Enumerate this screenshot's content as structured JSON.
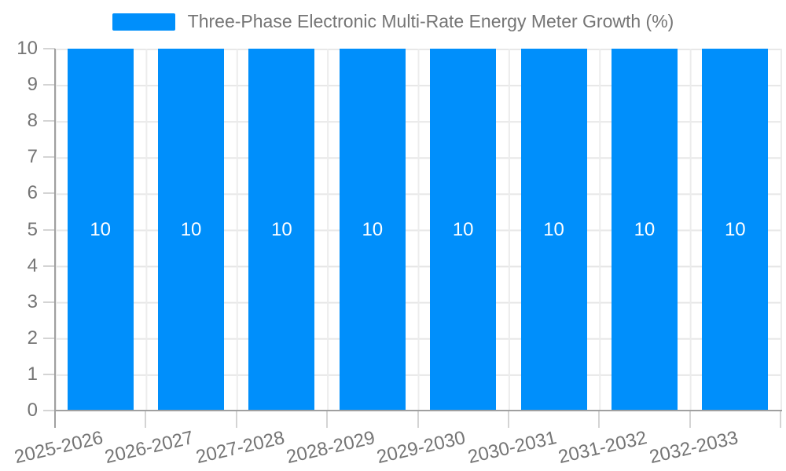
{
  "legend": {
    "label": "Three-Phase Electronic Multi-Rate Energy Meter Growth (%)",
    "swatch_color": "#008FFB"
  },
  "chart_data": {
    "type": "bar",
    "title": "Three-Phase Electronic Multi-Rate Energy Meter Growth (%)",
    "categories": [
      "2025-2026",
      "2026-2027",
      "2027-2028",
      "2028-2029",
      "2029-2030",
      "2030-2031",
      "2031-2032",
      "2032-2033"
    ],
    "series": [
      {
        "name": "Three-Phase Electronic Multi-Rate Energy Meter Growth (%)",
        "values": [
          10,
          10,
          10,
          10,
          10,
          10,
          10,
          10
        ]
      }
    ],
    "data_labels": [
      "10",
      "10",
      "10",
      "10",
      "10",
      "10",
      "10",
      "10"
    ],
    "xlabel": "",
    "ylabel": "",
    "ylim": [
      0,
      10
    ],
    "yticks": [
      0,
      1,
      2,
      3,
      4,
      5,
      6,
      7,
      8,
      9,
      10
    ],
    "grid": true,
    "legend_position": "top",
    "x_label_rotation_deg": -13,
    "colors": {
      "bar": "#008FFB",
      "label_text": "#757575",
      "data_label": "#ffffff",
      "gridline": "#e7e7e7",
      "vertical_gridline": "#ececec",
      "axis_line": "#a0a0a0",
      "tick": "#d4d4d4"
    }
  }
}
